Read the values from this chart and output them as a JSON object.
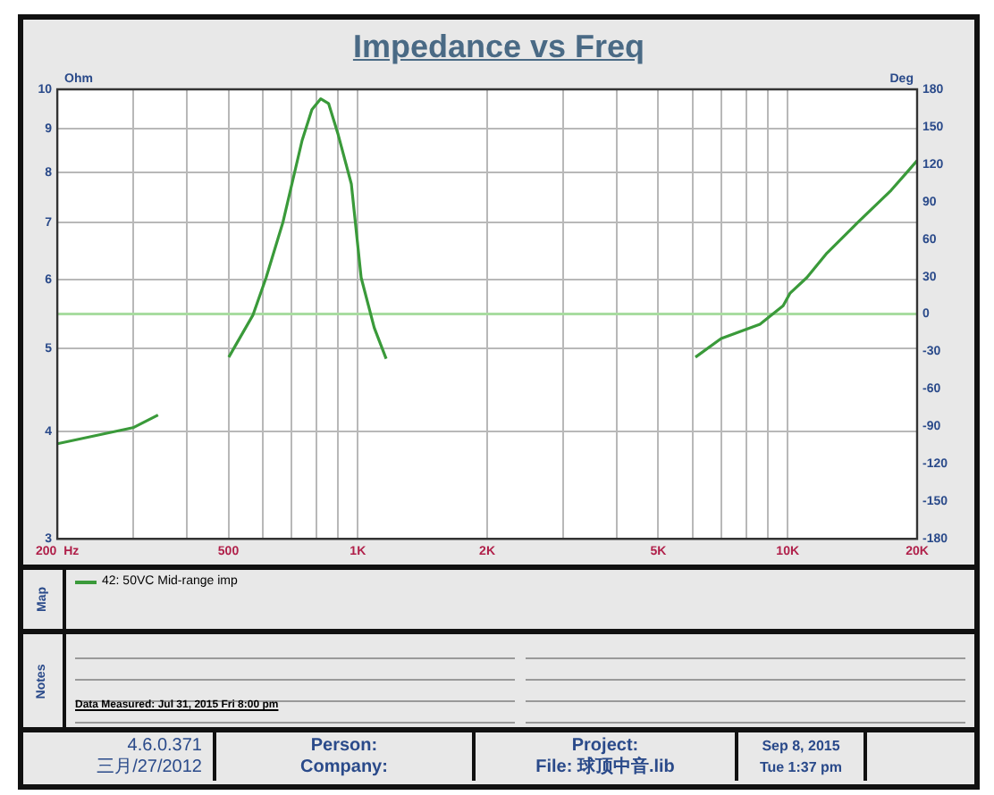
{
  "chart_data": {
    "type": "line",
    "title": "Impedance vs Freq",
    "ylabel": "Ohm",
    "y2label": "Deg",
    "log": "xy",
    "series": [
      {
        "name": "42: 50VC  Mid-range imp",
        "color": "#3a9a3a",
        "x": [
          200,
          300,
          343,
          420,
          501,
          570,
          612,
          670,
          742,
          782,
          820,
          855,
          900,
          966,
          1018,
          1092,
          1164,
          2000,
          6100,
          7000,
          8620,
          9760,
          10120,
          11080,
          12340,
          14600,
          17400,
          20000
        ],
        "values": [
          3.87,
          4.04,
          4.18,
          null,
          4.88,
          5.46,
          6.04,
          7.01,
          8.72,
          9.47,
          9.75,
          9.63,
          8.86,
          7.76,
          6.04,
          5.28,
          4.86,
          null,
          4.88,
          5.13,
          5.33,
          5.6,
          5.79,
          6.04,
          6.45,
          7.01,
          7.63,
          8.26
        ]
      }
    ],
    "xlim": [
      200,
      20000
    ],
    "xticks": [
      {
        "value": 200,
        "label": "200  Hz"
      },
      {
        "value": 300,
        "label": null
      },
      {
        "value": 400,
        "label": null
      },
      {
        "value": 500,
        "label": "500"
      },
      {
        "value": 600,
        "label": null
      },
      {
        "value": 700,
        "label": null
      },
      {
        "value": 800,
        "label": null
      },
      {
        "value": 900,
        "label": null
      },
      {
        "value": 1000,
        "label": "1K"
      },
      {
        "value": 2000,
        "label": "2K"
      },
      {
        "value": 3000,
        "label": null
      },
      {
        "value": 4000,
        "label": null
      },
      {
        "value": 5000,
        "label": "5K"
      },
      {
        "value": 6000,
        "label": null
      },
      {
        "value": 7000,
        "label": null
      },
      {
        "value": 8000,
        "label": null
      },
      {
        "value": 9000,
        "label": null
      },
      {
        "value": 10000,
        "label": "10K"
      },
      {
        "value": 20000,
        "label": "20K"
      }
    ],
    "ylim": [
      3,
      10
    ],
    "yticks": [
      3,
      4,
      5,
      6,
      7,
      8,
      9,
      10
    ],
    "y2lim": [
      -180,
      180
    ],
    "y2ticks": [
      -180,
      -150,
      -120,
      -90,
      -60,
      -30,
      0,
      30,
      60,
      90,
      120,
      150,
      180
    ],
    "ref_lines": [
      {
        "axis": "y2",
        "value": 0,
        "color": "#a8dca0"
      }
    ],
    "grid": true,
    "legend": "bottom",
    "marker": "none",
    "line_style": "solid",
    "annotations": [
      "Map",
      "Notes",
      "Data Measured: Jul 31, 2015  Fri  8:00 pm",
      "4.6.0.371",
      "三月/27/2012",
      "Person:",
      "Company:",
      "Project:",
      "File: 球顶中音.lib",
      "Sep  8, 2015",
      "Tue  1:37 pm"
    ]
  }
}
